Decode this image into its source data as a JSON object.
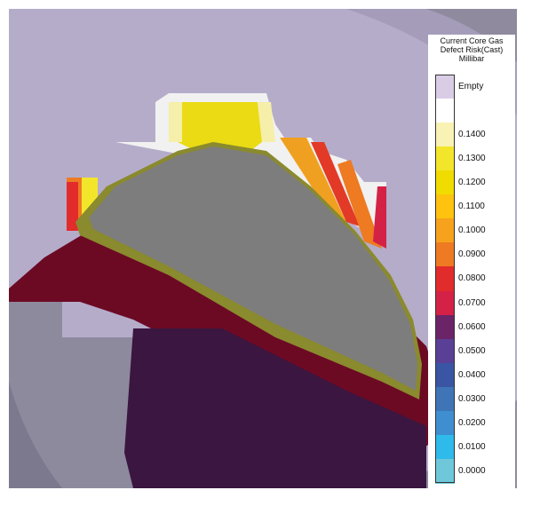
{
  "legend": {
    "title_lines": [
      "Current Core Gas",
      "Defect Risk(Cast)",
      "Millibar"
    ],
    "entries": [
      {
        "label": "Empty",
        "color": "#d9cde6"
      },
      {
        "label": "",
        "color": "#ffffff"
      },
      {
        "label": "0.1400",
        "color": "#f8f2b4"
      },
      {
        "label": "0.1300",
        "color": "#f3e62a"
      },
      {
        "label": "0.1200",
        "color": "#f0dc00"
      },
      {
        "label": "0.1100",
        "color": "#ffc20e"
      },
      {
        "label": "0.1000",
        "color": "#f6a21d"
      },
      {
        "label": "0.0900",
        "color": "#ee7a22"
      },
      {
        "label": "0.0800",
        "color": "#e22b2b"
      },
      {
        "label": "0.0700",
        "color": "#d42246"
      },
      {
        "label": "0.0600",
        "color": "#6a2467"
      },
      {
        "label": "0.0500",
        "color": "#5a3f96"
      },
      {
        "label": "0.0400",
        "color": "#3955a3"
      },
      {
        "label": "0.0300",
        "color": "#3f74b7"
      },
      {
        "label": "0.0200",
        "color": "#3f8ed0"
      },
      {
        "label": "0.0100",
        "color": "#2ebaea"
      },
      {
        "label": "0.0000",
        "color": "#6ec8d9"
      }
    ]
  },
  "scene": {
    "background_color": "#b5acca",
    "part_gray": "#7d7d7d",
    "dark_red": "#6c0a24",
    "dark_purple": "#3a1640",
    "shell_gray": "#8e8a9e"
  }
}
